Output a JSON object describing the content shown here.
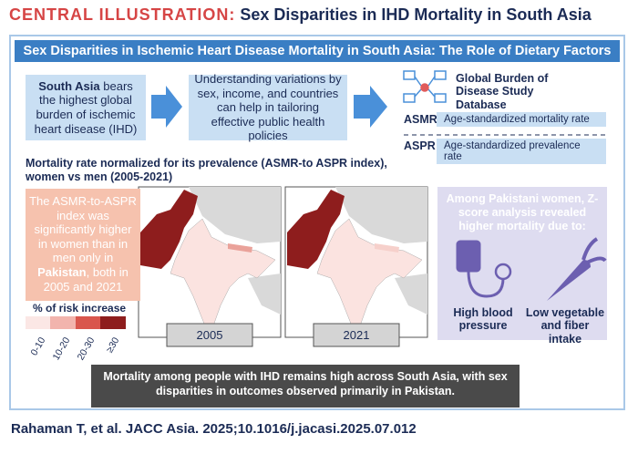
{
  "header": {
    "label": "CENTRAL ILLUSTRATION:",
    "title": "Sex Disparities in IHD Mortality in South Asia"
  },
  "banner": "Sex Disparities in Ischemic Heart Disease Mortality in South Asia: The Role of Dietary Factors",
  "flow": [
    {
      "bold": "South Asia",
      "text": "bears the highest global burden of ischemic heart disease (IHD)"
    },
    {
      "text": "Understanding variations by sex, income, and countries can help in tailoring effective public health policies"
    }
  ],
  "database": {
    "title": "Global Burden of Disease Study Database",
    "metrics": [
      {
        "abbr": "ASMR",
        "label": "Age-standardized mortality rate"
      },
      {
        "abbr": "ASPR",
        "label": "Age-standardized prevalence rate"
      }
    ]
  },
  "maps": {
    "title": "Mortality rate normalized for its prevalence (ASMR-to ASPR index), women vs men (2005-2021)",
    "finding": [
      "The ASMR-to-ASPR index was significantly higher in women than in men only in",
      "Pakistan",
      ", both in 2005 and 2021"
    ],
    "legend": {
      "title": "% of risk increase",
      "bins": [
        "0-10",
        "10-20",
        "20-30",
        "≥30"
      ]
    },
    "years": [
      "2005",
      "2021"
    ]
  },
  "pakistan": {
    "intro": "Among Pakistani women, Z-score analysis revealed higher mortality due to:",
    "factors": [
      "High blood pressure",
      "Low vegetable and fiber intake"
    ]
  },
  "conclusion": "Mortality among people with IHD remains high across South Asia, with sex disparities in outcomes observed primarily in Pakistan.",
  "citation": "Rahaman T, et al. JACC Asia. 2025;10.1016/j.jacasi.2025.07.012"
}
